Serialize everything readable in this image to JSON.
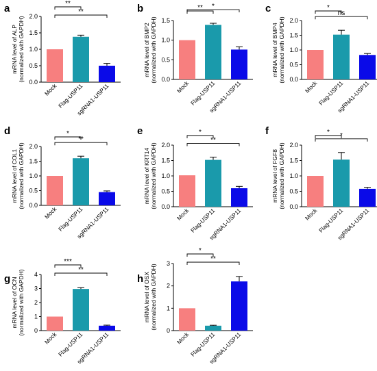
{
  "colors": {
    "mock": "#f77f7f",
    "flag": "#1a9aab",
    "sgrna": "#0a0ae8"
  },
  "chart_data": [
    {
      "type": "bar",
      "panel": "a",
      "categories": [
        "Mock",
        "Flag-USP11",
        "sgRNA1-USP11"
      ],
      "values": [
        1.0,
        1.38,
        0.5
      ],
      "errors": [
        0.0,
        0.05,
        0.07
      ],
      "ylabel_lines": [
        "mRNA level of ALP",
        "(normalized with GAPDH)"
      ],
      "ylim": [
        0,
        2.0
      ],
      "yticks": [
        "0.0",
        "0.5",
        "1.0",
        "1.5",
        "2.0"
      ],
      "comparisons": [
        {
          "from": 0,
          "to": 1,
          "label": "**"
        },
        {
          "from": 0,
          "to": 2,
          "label": "**"
        }
      ]
    },
    {
      "type": "bar",
      "panel": "b",
      "categories": [
        "Mock",
        "Flag-USP11",
        "sgRNA1-USP11"
      ],
      "values": [
        1.0,
        1.39,
        0.76
      ],
      "errors": [
        0.0,
        0.04,
        0.07
      ],
      "ylabel_lines": [
        "mRNA level of BMP2",
        "(normalized with GAPDH)"
      ],
      "ylim": [
        0,
        1.5
      ],
      "yticks": [
        "0.0",
        "0.5",
        "1.0",
        "1.5"
      ],
      "comparisons": [
        {
          "from": 0,
          "to": 1,
          "label": "**"
        },
        {
          "from": 0,
          "to": 2,
          "label": "*"
        }
      ]
    },
    {
      "type": "bar",
      "panel": "c",
      "categories": [
        "Mock",
        "Flag-USP11",
        "sgRNA1-USP11"
      ],
      "values": [
        1.0,
        1.52,
        0.83
      ],
      "errors": [
        0.0,
        0.15,
        0.05
      ],
      "ylabel_lines": [
        "mRNA level of BMP4",
        "(normalized with GAPDH)"
      ],
      "ylim": [
        0,
        2.0
      ],
      "yticks": [
        "0.0",
        "0.5",
        "1.0",
        "1.5",
        "2.0"
      ],
      "comparisons": [
        {
          "from": 0,
          "to": 1,
          "label": "*"
        },
        {
          "from": 0,
          "to": 2,
          "label": "ns"
        }
      ]
    },
    {
      "type": "bar",
      "panel": "d",
      "categories": [
        "Mock",
        "Flag-USP11",
        "sgRNA1-USP11"
      ],
      "values": [
        1.0,
        1.6,
        0.45
      ],
      "errors": [
        0.0,
        0.07,
        0.04
      ],
      "ylabel_lines": [
        "mRNA level of COL1",
        "(normalized with GAPDH)"
      ],
      "ylim": [
        0,
        2.0
      ],
      "yticks": [
        "0.0",
        "0.5",
        "1.0",
        "1.5",
        "2.0"
      ],
      "comparisons": [
        {
          "from": 0,
          "to": 1,
          "label": "*"
        },
        {
          "from": 0,
          "to": 2,
          "label": "**"
        }
      ]
    },
    {
      "type": "bar",
      "panel": "e",
      "categories": [
        "Mock",
        "Flag-USP11",
        "sgRNA1-USP11"
      ],
      "values": [
        1.02,
        1.52,
        0.6
      ],
      "errors": [
        0.0,
        0.09,
        0.06
      ],
      "ylabel_lines": [
        "mRNA level of  KRT14",
        "(normalized with GAPDH)"
      ],
      "ylim": [
        0,
        2.0
      ],
      "yticks": [
        "0.0",
        "0.5",
        "1.0",
        "1.5",
        "2.0"
      ],
      "comparisons": [
        {
          "from": 0,
          "to": 1,
          "label": "*"
        },
        {
          "from": 0,
          "to": 2,
          "label": "**"
        }
      ]
    },
    {
      "type": "bar",
      "panel": "f",
      "categories": [
        "Mock",
        "Flag-USP11",
        "sgRNA1-USP11"
      ],
      "values": [
        1.0,
        1.53,
        0.58
      ],
      "errors": [
        0.0,
        0.23,
        0.05
      ],
      "ylabel_lines": [
        "mRNA level of FGF8",
        "(normalized with GAPDH)"
      ],
      "ylim": [
        0,
        2.0
      ],
      "yticks": [
        "0.0",
        "0.5",
        "1.0",
        "1.5",
        "2.0"
      ],
      "comparisons": [
        {
          "from": 0,
          "to": 1,
          "label": "*"
        },
        {
          "from": 0,
          "to": 2,
          "label": "*"
        }
      ]
    },
    {
      "type": "bar",
      "panel": "g",
      "categories": [
        "Mock",
        "Flag-USP11",
        "sgRNA1-USP11"
      ],
      "values": [
        1.0,
        2.97,
        0.35
      ],
      "errors": [
        0.0,
        0.09,
        0.04
      ],
      "ylabel_lines": [
        "mRNA level of OCN",
        "(normalized with GAPDH)"
      ],
      "ylim": [
        0,
        4.0
      ],
      "yticks": [
        "0",
        "1",
        "2",
        "3",
        "4"
      ],
      "comparisons": [
        {
          "from": 0,
          "to": 1,
          "label": "***"
        },
        {
          "from": 0,
          "to": 2,
          "label": "**"
        }
      ]
    },
    {
      "type": "bar",
      "panel": "h",
      "categories": [
        "Mock",
        "Flag-USP11",
        "sgRNA1-USP11"
      ],
      "values": [
        1.0,
        0.22,
        2.2
      ],
      "errors": [
        0.0,
        0.02,
        0.22
      ],
      "ylabel_lines": [
        "mRNA level of OSX",
        "(normalized with GAPDH)"
      ],
      "ylim": [
        0,
        3.0
      ],
      "yticks": [
        "0",
        "1",
        "2",
        "3"
      ],
      "comparisons": [
        {
          "from": 0,
          "to": 1,
          "label": "*"
        },
        {
          "from": 0,
          "to": 2,
          "label": "**"
        }
      ]
    }
  ]
}
